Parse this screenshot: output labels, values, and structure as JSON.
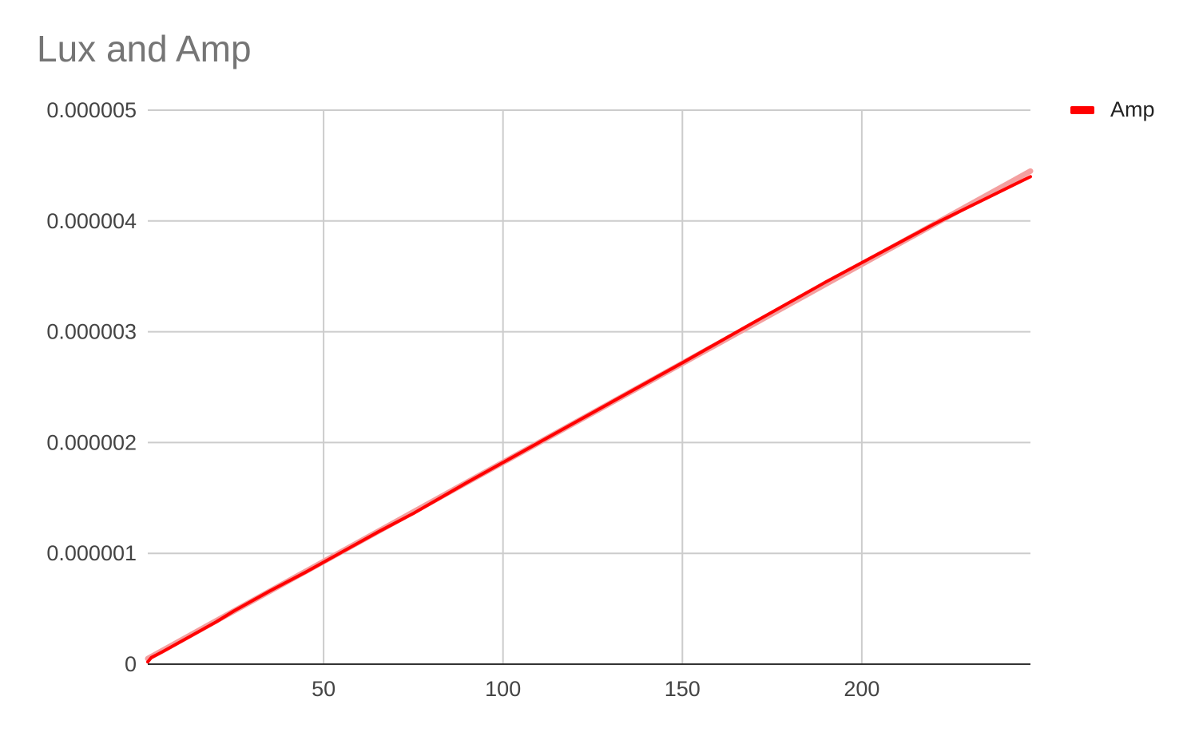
{
  "chart_data": {
    "type": "line",
    "title": "Lux and Amp",
    "xlabel": "",
    "ylabel": "",
    "xlim": [
      1,
      247
    ],
    "ylim": [
      0,
      5e-06
    ],
    "xticks": [
      50,
      100,
      150,
      200
    ],
    "yticks": [
      0,
      1e-06,
      2e-06,
      3e-06,
      4e-06,
      5e-06
    ],
    "ytick_labels": [
      "0",
      "0.000001",
      "0.000002",
      "0.000003",
      "0.000004",
      "0.000005"
    ],
    "grid": true,
    "legend_position": "top-right",
    "series": [
      {
        "name": "Amp",
        "color": "#ff0000",
        "x": [
          1,
          2,
          5,
          10,
          15,
          20,
          25,
          35,
          45,
          55,
          65,
          75,
          90,
          110,
          130,
          150,
          168,
          190,
          220,
          247
        ],
        "y": [
          2e-08,
          6e-08,
          1.1e-07,
          2e-07,
          2.9e-07,
          3.8e-07,
          4.8e-07,
          6.6e-07,
          8.3e-07,
          1.01e-06,
          1.19e-06,
          1.36e-06,
          1.64e-06,
          2e-06,
          2.36e-06,
          2.72e-06,
          3.05e-06,
          3.45e-06,
          3.97e-06,
          4.4e-06
        ]
      }
    ],
    "trendline": {
      "series": "Amp",
      "color": "#f4a0a0",
      "x": [
        1,
        247
      ],
      "y": [
        5e-08,
        4.45e-06
      ]
    }
  }
}
